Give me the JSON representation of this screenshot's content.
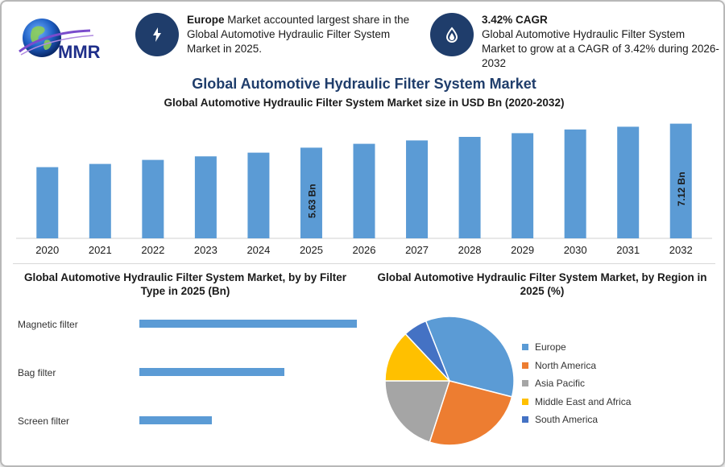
{
  "logo": {
    "text": "MMR"
  },
  "stats": [
    {
      "icon": "bolt-icon",
      "bold": "Europe",
      "text": " Market accounted largest share in the Global Automotive Hydraulic Filter System Market in 2025."
    },
    {
      "icon": "drop-icon",
      "bold": "3.42% CAGR",
      "text": "Global Automotive Hydraulic Filter System Market to grow at a CAGR of 3.42% during 2026-2032"
    }
  ],
  "title": "Global Automotive Hydraulic Filter System Market",
  "chart_data": [
    {
      "type": "bar",
      "title": "Global Automotive Hydraulic Filter System Market size in USD Bn (2020-2032)",
      "categories": [
        "2020",
        "2021",
        "2022",
        "2023",
        "2024",
        "2025",
        "2026",
        "2027",
        "2028",
        "2029",
        "2030",
        "2031",
        "2032"
      ],
      "values": [
        4.42,
        4.62,
        4.87,
        5.09,
        5.32,
        5.63,
        5.87,
        6.08,
        6.3,
        6.53,
        6.76,
        6.93,
        7.12
      ],
      "data_labels": {
        "2025": "5.63 Bn",
        "2032": "7.12 Bn"
      },
      "ylim": [
        0,
        7.3
      ],
      "grid": false,
      "color": "#5b9bd5"
    },
    {
      "type": "bar",
      "orientation": "horizontal",
      "title": "Global Automotive Hydraulic Filter System Market, by by Filter Type in 2025 (Bn)",
      "categories": [
        "Magnetic filter",
        "Bag filter",
        "Screen filter"
      ],
      "values": [
        3.0,
        2.0,
        1.0
      ],
      "xlim": [
        0,
        3.0
      ],
      "color": "#5b9bd5"
    },
    {
      "type": "pie",
      "title": "Global Automotive Hydraulic Filter System Market, by Region in 2025 (%)",
      "labels": [
        "Europe",
        "North America",
        "Asia Pacific",
        "Middle East and Africa",
        "South America"
      ],
      "values": [
        35,
        26,
        20,
        13,
        6
      ],
      "colors": [
        "#5b9bd5",
        "#ed7d31",
        "#a5a5a5",
        "#ffc000",
        "#4472c4"
      ],
      "legend": "right"
    }
  ]
}
